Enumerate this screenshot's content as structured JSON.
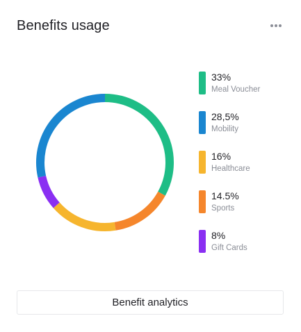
{
  "card": {
    "title": "Benefits usage",
    "more_icon": "more-horizontal-icon",
    "button_label": "Benefit analytics"
  },
  "chart_data": {
    "type": "pie",
    "style": "donut",
    "start_angle_deg": 0,
    "direction": "clockwise",
    "legend_position": "right",
    "series": [
      {
        "name": "Meal Voucher",
        "value": 33,
        "display": "33%",
        "color": "#1ebd86"
      },
      {
        "name": "Mobility",
        "value": 28.5,
        "display": "28,5%",
        "color": "#1a86d0"
      },
      {
        "name": "Healthcare",
        "value": 16,
        "display": "16%",
        "color": "#f6b52e"
      },
      {
        "name": "Sports",
        "value": 14.5,
        "display": "14.5%",
        "color": "#f5862c"
      },
      {
        "name": "Gift Cards",
        "value": 8,
        "display": "8%",
        "color": "#8a2ff2"
      }
    ],
    "draw_order": [
      "Meal Voucher",
      "Sports",
      "Healthcare",
      "Gift Cards",
      "Mobility"
    ]
  }
}
